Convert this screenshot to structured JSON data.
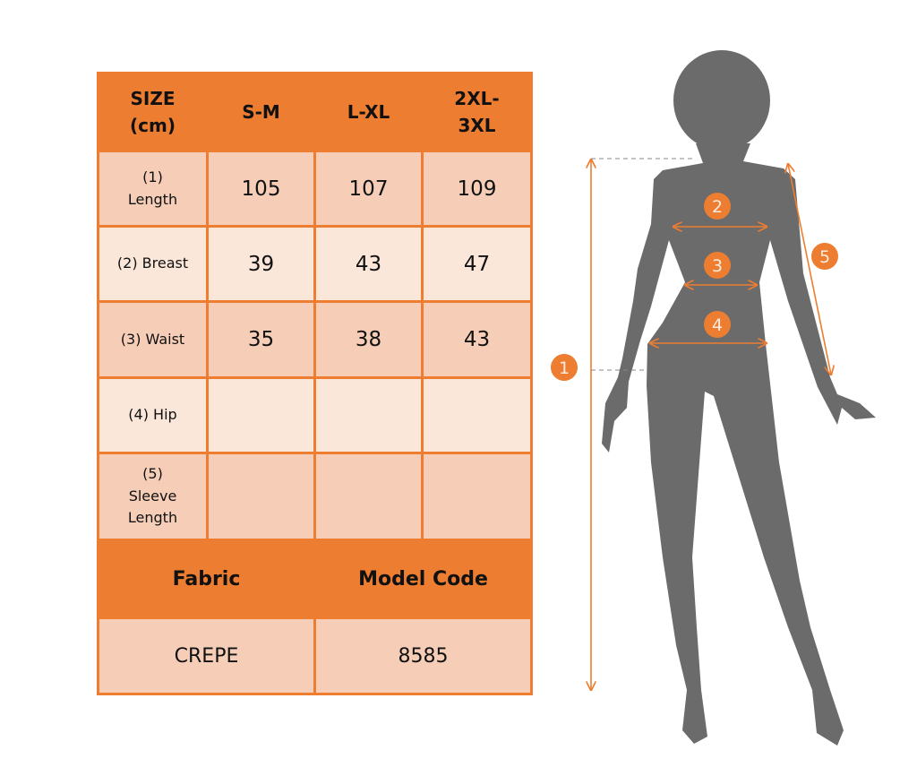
{
  "table": {
    "header": [
      "SIZE (cm)",
      "S-M",
      "L-XL",
      "2XL- 3XL"
    ],
    "header_lines": [
      [
        "SIZE",
        "(cm)"
      ],
      [
        "S-M"
      ],
      [
        "L-XL"
      ],
      [
        "2XL-",
        "3XL"
      ]
    ],
    "rows": [
      {
        "label_lines": [
          "(1)",
          "Length"
        ],
        "values": [
          "105",
          "107",
          "109"
        ]
      },
      {
        "label_lines": [
          "(2) Breast"
        ],
        "values": [
          "39",
          "43",
          "47"
        ]
      },
      {
        "label_lines": [
          "(3) Waist"
        ],
        "values": [
          "35",
          "38",
          "43"
        ]
      },
      {
        "label_lines": [
          "(4) Hip"
        ],
        "values": [
          "",
          "",
          ""
        ]
      },
      {
        "label_lines": [
          "(5)",
          "Sleeve",
          "Length"
        ],
        "values": [
          "",
          "",
          ""
        ]
      }
    ],
    "footer_headers": [
      "Fabric",
      "Model Code"
    ],
    "footer_values": [
      "CREPE",
      "8585"
    ]
  },
  "figure": {
    "markers": [
      "1",
      "2",
      "3",
      "4",
      "5"
    ]
  },
  "colors": {
    "accent": "#ED7D31",
    "row_dark": "#F6CEB7",
    "row_light": "#FBE6DA",
    "silhouette": "#6B6B6B"
  }
}
